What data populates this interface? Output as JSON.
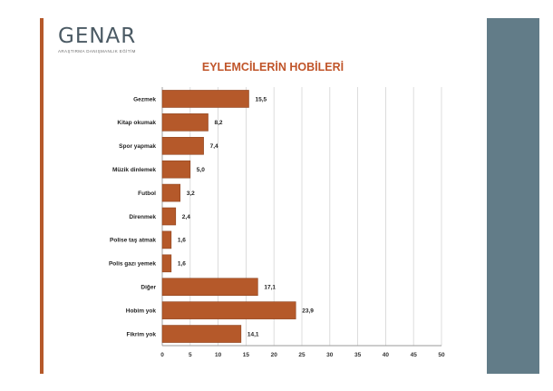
{
  "logo": {
    "name": "GENAR",
    "tagline": "ARAŞTIRMA DANIŞMANLIK EĞİTİM"
  },
  "colors": {
    "bar": "#b5592a",
    "bar_stroke": "#8e4420",
    "accent": "#b5592a",
    "side_panel": "#627c88",
    "title": "#c0552a"
  },
  "chart_data": {
    "type": "bar",
    "orientation": "horizontal",
    "title": "EYLEMCİLERİN HOBİLERİ",
    "categories": [
      "Gezmek",
      "Kitap okumak",
      "Spor yapmak",
      "Müzik dinlemek",
      "Futbol",
      "Direnmek",
      "Polise taş atmak",
      "Polis gazı yemek",
      "Diğer",
      "Hobim yok",
      "Fikrim yok"
    ],
    "values": [
      15.5,
      8.2,
      7.4,
      5.0,
      3.2,
      2.4,
      1.6,
      1.6,
      17.1,
      23.9,
      14.1
    ],
    "data_labels": [
      "15,5",
      "8,2",
      "7,4",
      "5,0",
      "3,2",
      "2,4",
      "1,6",
      "1,6",
      "17,1",
      "23,9",
      "14,1"
    ],
    "xlim": [
      0,
      50
    ],
    "xticks": [
      0,
      5,
      10,
      15,
      20,
      25,
      30,
      35,
      40,
      45,
      50
    ],
    "grid": true,
    "legend": "none"
  }
}
